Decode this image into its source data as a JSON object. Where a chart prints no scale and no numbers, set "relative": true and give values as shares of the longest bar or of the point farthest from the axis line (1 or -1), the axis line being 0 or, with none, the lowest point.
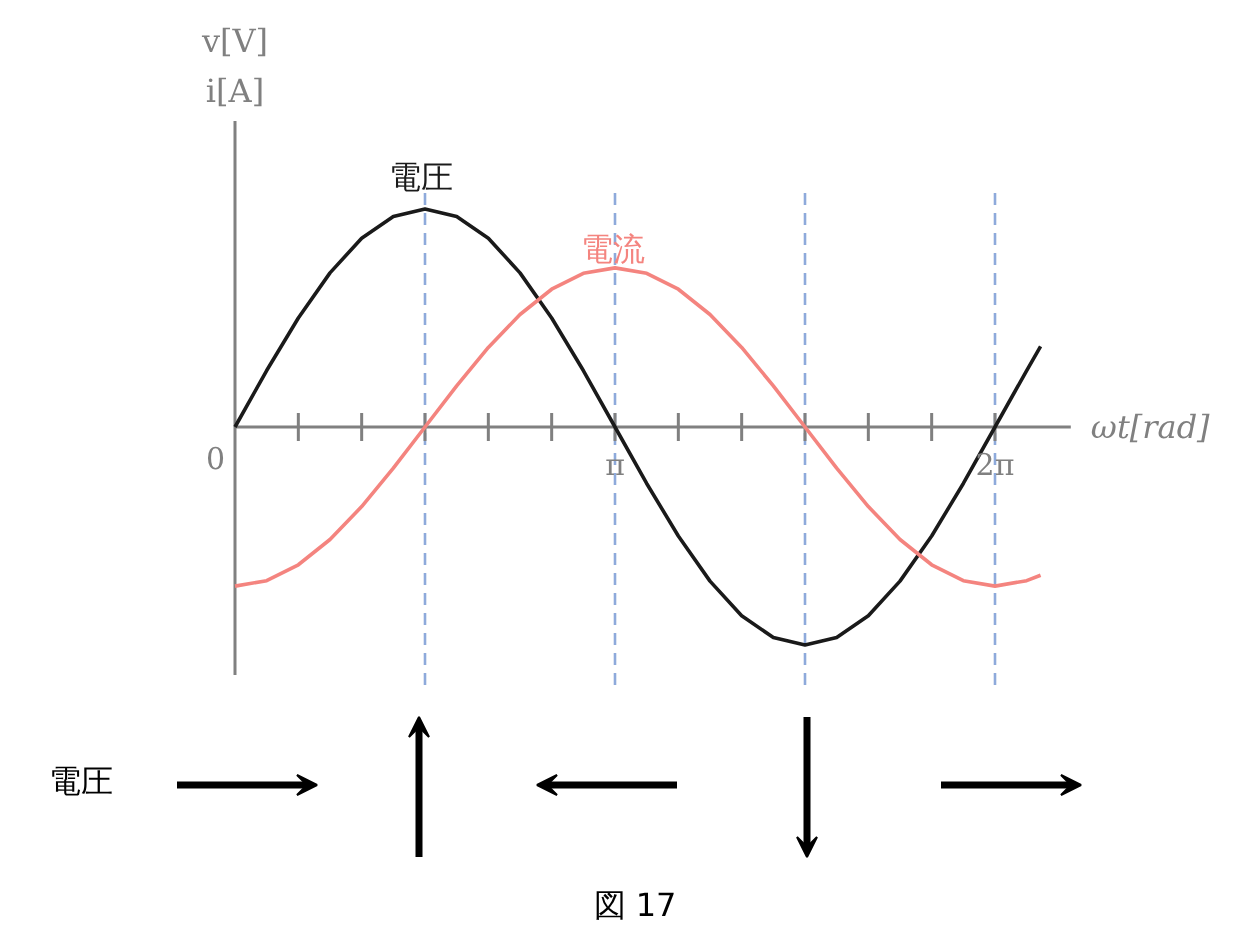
{
  "chart_data": {
    "type": "line",
    "relative": true,
    "xlabel": "ωt[rad]",
    "ylabel": "v[V]\ni[A]",
    "xlim": [
      0,
      6.91
    ],
    "xticks": [
      {
        "value": 0,
        "label": "0"
      },
      {
        "value": 0.5236,
        "label": null
      },
      {
        "value": 1.0472,
        "label": null
      },
      {
        "value": 1.5708,
        "label": null
      },
      {
        "value": 2.0944,
        "label": null
      },
      {
        "value": 2.618,
        "label": null
      },
      {
        "value": 3.1416,
        "label": "π"
      },
      {
        "value": 3.6652,
        "label": null
      },
      {
        "value": 4.1888,
        "label": null
      },
      {
        "value": 4.7124,
        "label": null
      },
      {
        "value": 5.236,
        "label": null
      },
      {
        "value": 5.7596,
        "label": null
      },
      {
        "value": 6.2832,
        "label": "2π"
      }
    ],
    "series": [
      {
        "name": "電圧",
        "color": "#1a1a1a",
        "x": [
          0,
          0.2618,
          0.5236,
          0.7854,
          1.0472,
          1.309,
          1.5708,
          1.8326,
          2.0944,
          2.3562,
          2.618,
          2.8798,
          3.1416,
          3.4034,
          3.6652,
          3.927,
          4.1888,
          4.4506,
          4.7124,
          4.9742,
          5.236,
          5.4978,
          5.7596,
          6.0214,
          6.2832,
          6.545,
          6.66
        ],
        "values": [
          0,
          0.259,
          0.5,
          0.707,
          0.866,
          0.966,
          1,
          0.966,
          0.866,
          0.707,
          0.5,
          0.259,
          0,
          -0.259,
          -0.5,
          -0.707,
          -0.866,
          -0.966,
          -1,
          -0.966,
          -0.866,
          -0.707,
          -0.5,
          -0.259,
          0,
          0.259,
          0.37
        ]
      },
      {
        "name": "電流",
        "color": "#f4847f",
        "x": [
          0,
          0.2618,
          0.5236,
          0.7854,
          1.0472,
          1.309,
          1.5708,
          1.8326,
          2.0944,
          2.3562,
          2.618,
          2.8798,
          3.1416,
          3.4034,
          3.6652,
          3.927,
          4.1888,
          4.4506,
          4.7124,
          4.9742,
          5.236,
          5.4978,
          5.7596,
          6.0214,
          6.2832,
          6.545,
          6.66
        ],
        "values": [
          -0.73,
          -0.705,
          -0.632,
          -0.516,
          -0.365,
          -0.189,
          0,
          0.189,
          0.365,
          0.516,
          0.632,
          0.705,
          0.73,
          0.705,
          0.632,
          0.516,
          0.365,
          0.189,
          0,
          -0.189,
          -0.365,
          -0.516,
          -0.632,
          -0.705,
          -0.73,
          -0.705,
          -0.68
        ]
      }
    ],
    "ref_lines": [
      {
        "axis": "x",
        "value": 1.5708,
        "label": null,
        "color": "#8eaadb",
        "line_style": "dashed"
      },
      {
        "axis": "x",
        "value": 3.1416,
        "label": null,
        "color": "#8eaadb",
        "line_style": "dashed"
      },
      {
        "axis": "x",
        "value": 4.7124,
        "label": null,
        "color": "#8eaadb",
        "line_style": "dashed"
      },
      {
        "axis": "x",
        "value": 6.2832,
        "label": null,
        "color": "#8eaadb",
        "line_style": "dashed"
      }
    ],
    "annotations": [
      "電圧",
      "図 17"
    ]
  }
}
